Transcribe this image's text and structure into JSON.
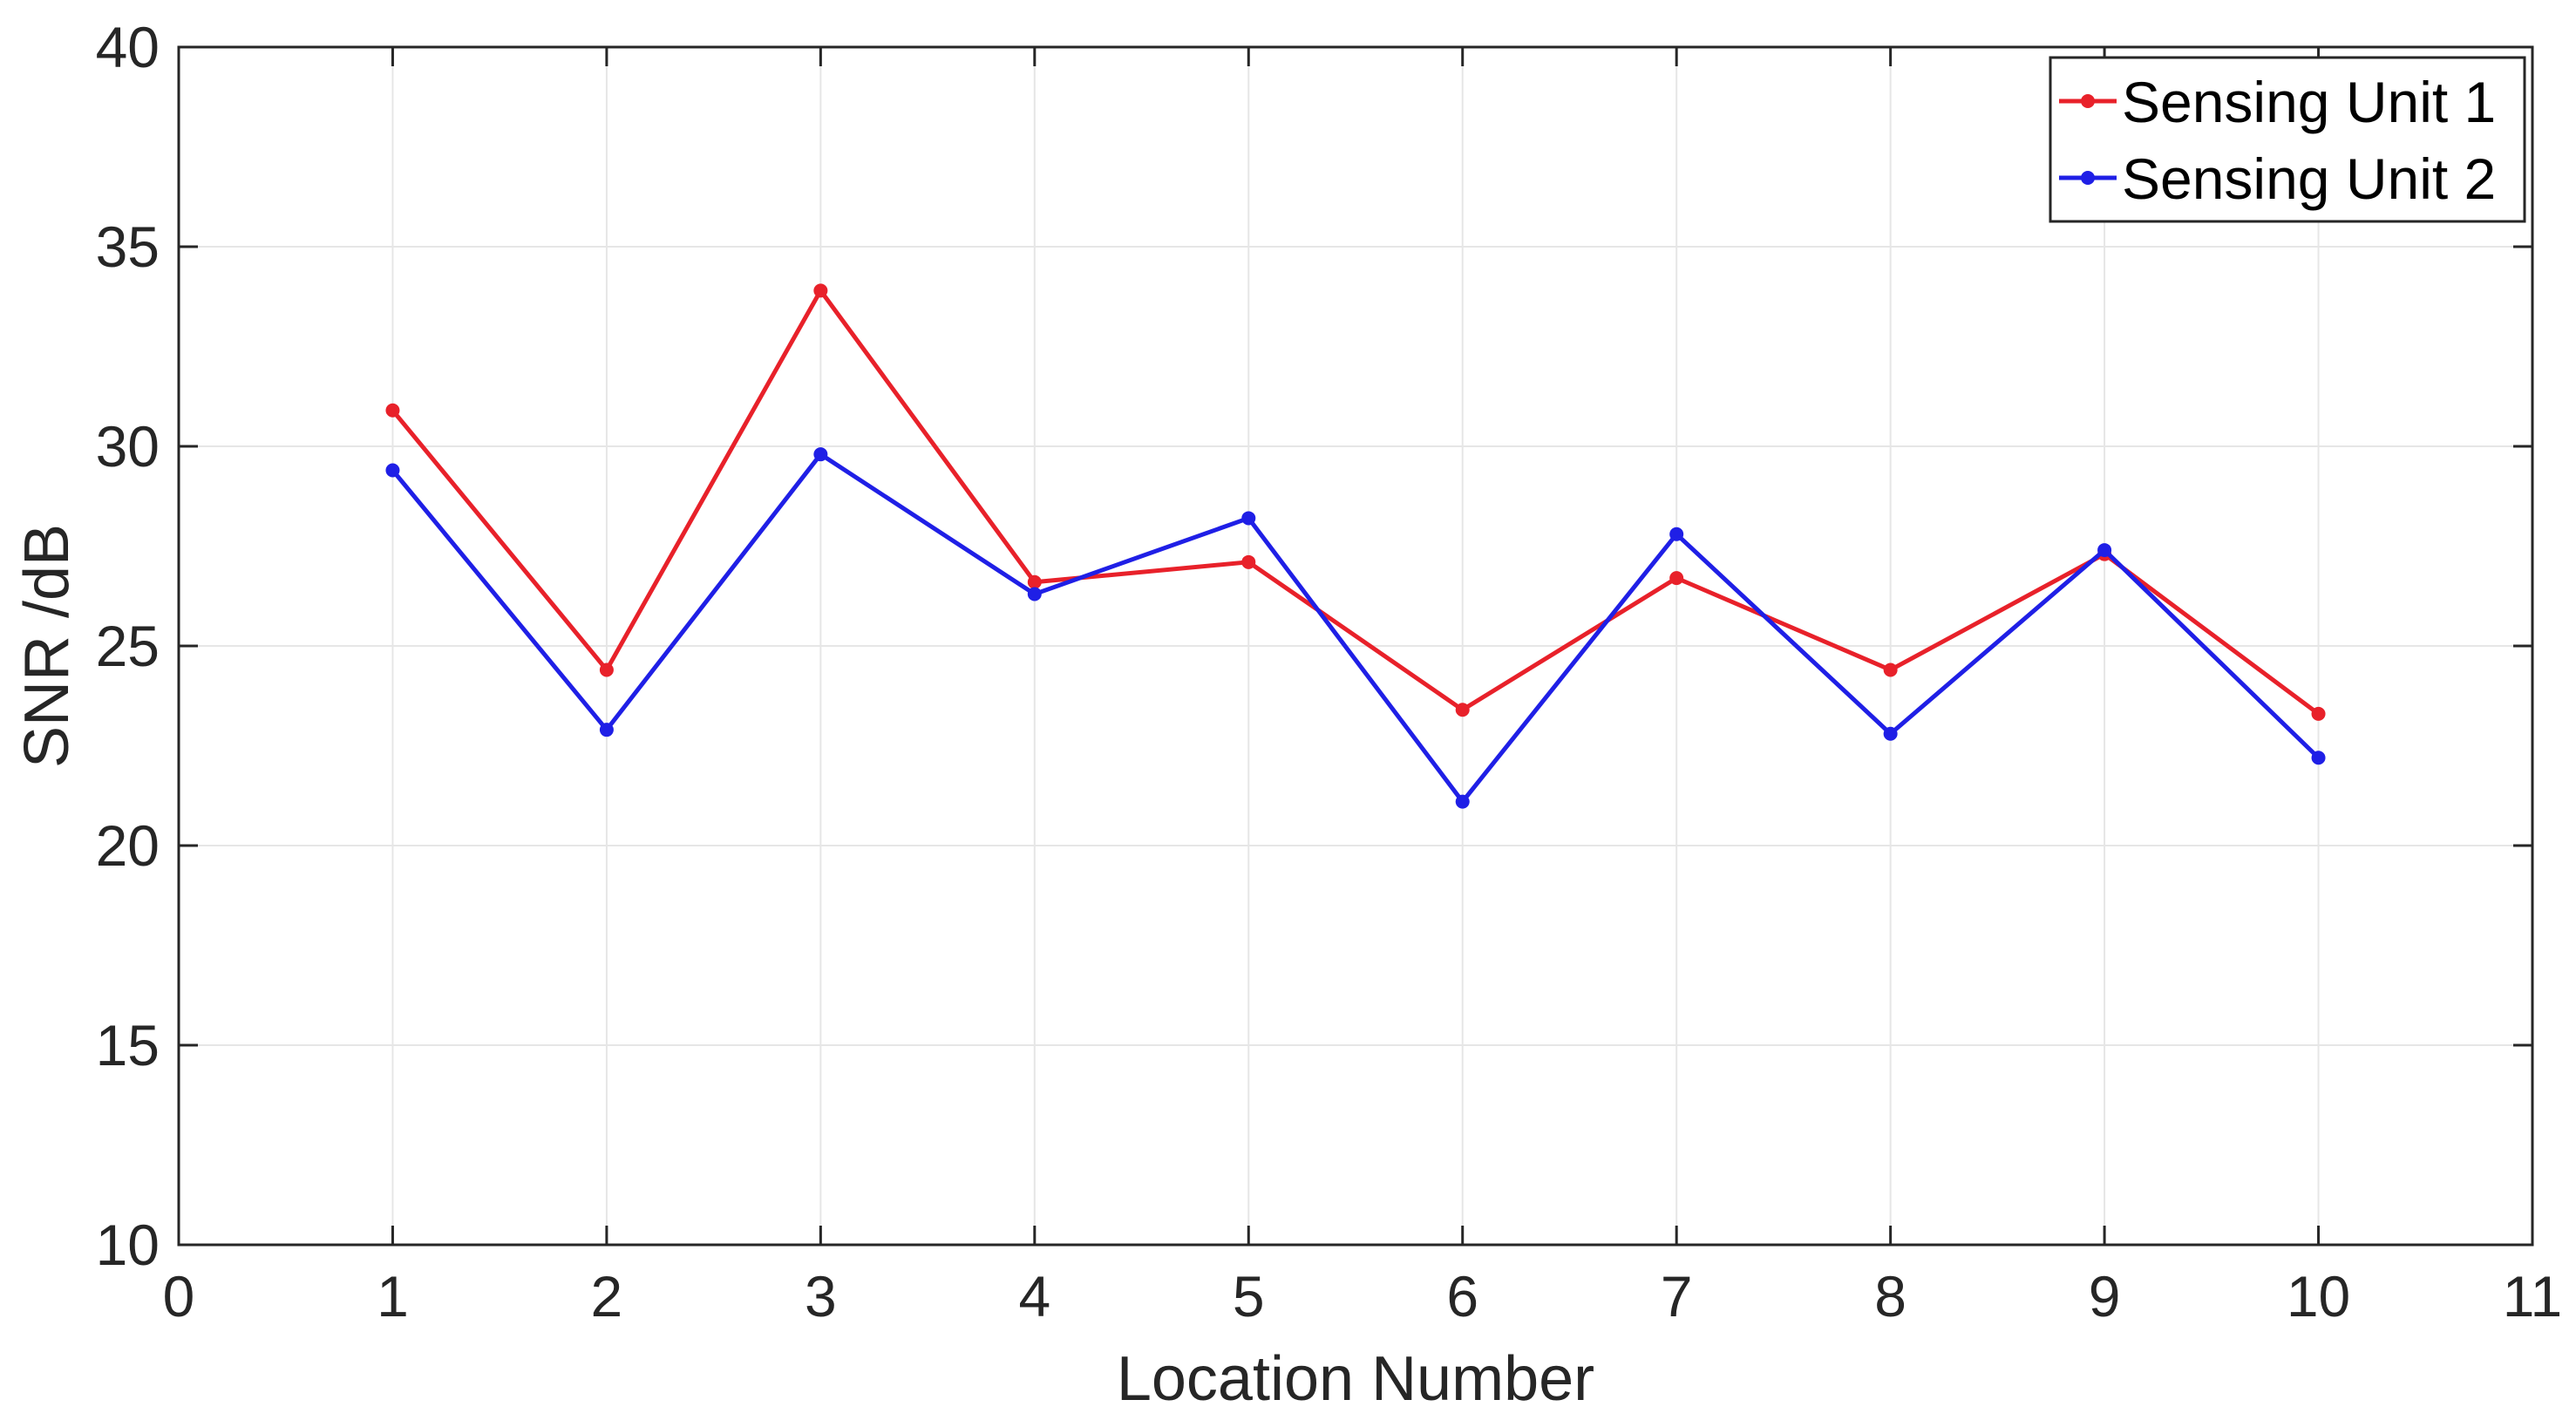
{
  "chart_data": {
    "type": "line",
    "title": "",
    "xlabel": "Location Number",
    "ylabel": "SNR /dB",
    "xlim": [
      0,
      11
    ],
    "ylim": [
      10,
      40
    ],
    "xticks": [
      0,
      1,
      2,
      3,
      4,
      5,
      6,
      7,
      8,
      9,
      10,
      11
    ],
    "yticks": [
      10,
      15,
      20,
      25,
      30,
      35,
      40
    ],
    "grid": true,
    "legend_position": "top-right",
    "x": [
      1,
      2,
      3,
      4,
      5,
      6,
      7,
      8,
      9,
      10
    ],
    "series": [
      {
        "name": "Sensing Unit 1",
        "color": "#e8212a",
        "marker": "dot",
        "values": [
          30.9,
          24.4,
          33.9,
          26.6,
          27.1,
          23.4,
          26.7,
          24.4,
          27.3,
          23.3
        ]
      },
      {
        "name": "Sensing Unit 2",
        "color": "#1f1fe6",
        "marker": "dot",
        "values": [
          29.4,
          22.9,
          29.8,
          26.3,
          28.2,
          21.1,
          27.8,
          22.8,
          27.4,
          22.2
        ]
      }
    ]
  }
}
